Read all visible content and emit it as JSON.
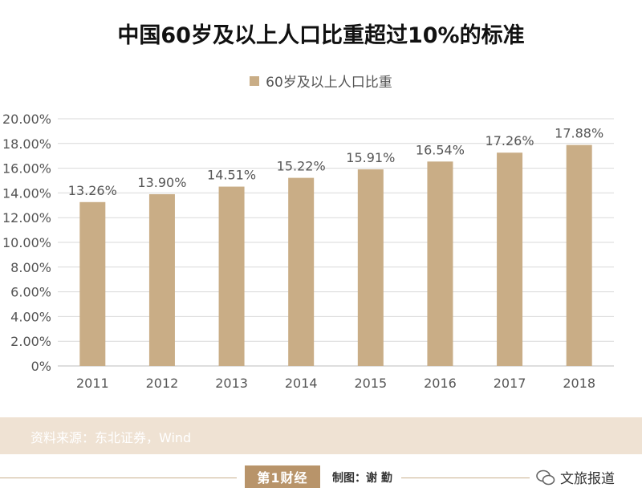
{
  "header": {
    "title": "中国60岁及以上人口比重超过10%的标准"
  },
  "footer": {
    "source": "资料来源：东北证券，Wind",
    "logo_text": "第1财经",
    "credit": "制图：谢 勤",
    "wechat_name": "文旅报道"
  },
  "colors": {
    "bar": "#c9ad86",
    "grid": "#d9d9d9",
    "axis_text": "#555555"
  },
  "chart_data": {
    "type": "bar",
    "title": "中国60岁及以上人口比重超过10%的标准",
    "categories": [
      "2011",
      "2012",
      "2013",
      "2014",
      "2015",
      "2016",
      "2017",
      "2018"
    ],
    "series": [
      {
        "name": "60岁及以上人口比重",
        "values": [
          13.26,
          13.9,
          14.51,
          15.22,
          15.91,
          16.54,
          17.26,
          17.88
        ],
        "labels": [
          "13.26%",
          "13.90%",
          "14.51%",
          "15.22%",
          "15.91%",
          "16.54%",
          "17.26%",
          "17.88%"
        ]
      }
    ],
    "yticks": [
      "0%",
      "2.00%",
      "4.00%",
      "6.00%",
      "8.00%",
      "10.00%",
      "12.00%",
      "14.00%",
      "16.00%",
      "18.00%",
      "20.00%"
    ],
    "ylim": [
      0,
      20
    ],
    "grid": true,
    "legend_position": "top-center"
  }
}
